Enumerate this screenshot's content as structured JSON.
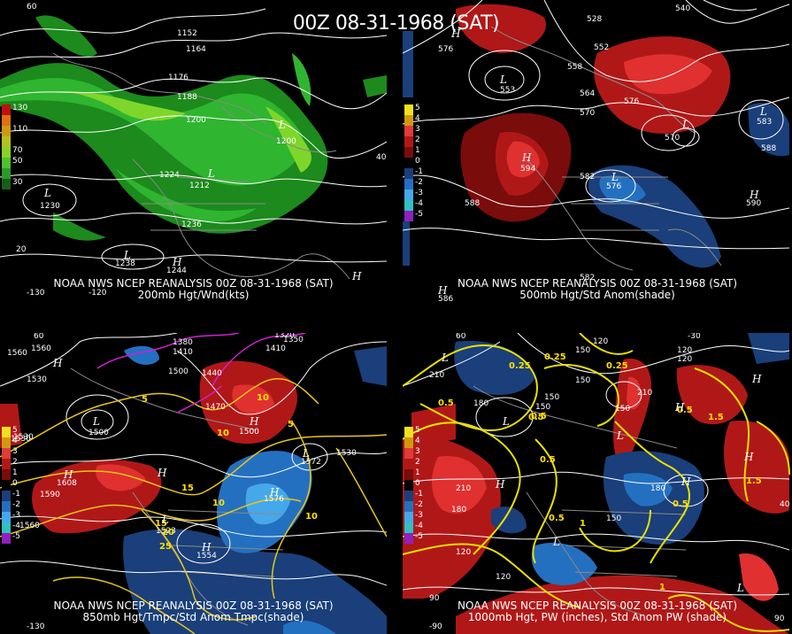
{
  "title": "00Z 08-31-1968 (SAT)",
  "colors": {
    "background": "#000000",
    "contour": "#ffffff",
    "wind_green": [
      "#1c8a1c",
      "#2fb52f",
      "#7fd62b",
      "#d2e63a"
    ],
    "anom_pos": [
      "#7a0c0c",
      "#b01818",
      "#e03030"
    ],
    "anom_neg": [
      "#1a3f7a",
      "#2470c0",
      "#45a8ea"
    ],
    "temp_contour": "#e8c619",
    "freezing_line": "#d020d0"
  },
  "panels": [
    {
      "id": "p200",
      "caption_line1": "NOAA NWS NCEP REANALYSIS 00Z 08-31-1968 (SAT)",
      "caption_line2": "200mb Hgt/Wnd(kts)",
      "colorbar": [
        {
          "color": "#c01010",
          "label": "130"
        },
        {
          "color": "#e07010",
          "label": ""
        },
        {
          "color": "#d09a10",
          "label": "110"
        },
        {
          "color": "#b5c020",
          "label": ""
        },
        {
          "color": "#8ad02a",
          "label": "70"
        },
        {
          "color": "#50c030",
          "label": "50"
        },
        {
          "color": "#2a9a2a",
          "label": ""
        },
        {
          "color": "#156015",
          "label": "30"
        }
      ],
      "labels": [
        "1152",
        "1164",
        "1176",
        "1188",
        "1200",
        "1200",
        "1212",
        "1224",
        "1236",
        "1230",
        "1238",
        "1244",
        "20",
        "-130",
        "-120"
      ],
      "hl_labels": [
        "L",
        "L",
        "L",
        "L",
        "H",
        "H"
      ],
      "edge_labels": [
        "60",
        "40"
      ]
    },
    {
      "id": "p500",
      "caption_line1": "NOAA NWS NCEP REANALYSIS 00Z 08-31-1968 (SAT)",
      "caption_line2": "500mb Hgt/Std Anom(shade)",
      "colorbar": [
        {
          "color": "#f0e020",
          "label": "5"
        },
        {
          "color": "#d09a10",
          "label": "4"
        },
        {
          "color": "#e03a3a",
          "label": "3"
        },
        {
          "color": "#b01818",
          "label": "2"
        },
        {
          "color": "#7a0c0c",
          "label": "1"
        },
        {
          "color": "#000000",
          "label": "0"
        },
        {
          "color": "#1a3f7a",
          "label": "-1"
        },
        {
          "color": "#2470c0",
          "label": "-2"
        },
        {
          "color": "#45a8ea",
          "label": "-3"
        },
        {
          "color": "#30c0c0",
          "label": "-4"
        },
        {
          "color": "#9020c0",
          "label": "-5"
        }
      ],
      "labels": [
        "540",
        "528",
        "552",
        "558",
        "564",
        "570",
        "576",
        "582",
        "588",
        "588",
        "553",
        "594",
        "576",
        "570",
        "583",
        "590",
        "582",
        "586"
      ],
      "hl_labels": [
        "H",
        "L",
        "L",
        "L",
        "L",
        "H",
        "H",
        "H"
      ],
      "edge_labels": [
        "576"
      ]
    },
    {
      "id": "p850",
      "caption_line1": "NOAA NWS NCEP REANALYSIS 00Z 08-31-1968 (SAT)",
      "caption_line2": "850mb Hgt/Tmpc/Std Anom Tmpc(shade)",
      "colorbar": [
        {
          "color": "#f0e020",
          "label": "5"
        },
        {
          "color": "#d09a10",
          "label": "4"
        },
        {
          "color": "#e03a3a",
          "label": "3"
        },
        {
          "color": "#b01818",
          "label": "2"
        },
        {
          "color": "#7a0c0c",
          "label": "1"
        },
        {
          "color": "#000000",
          "label": "0"
        },
        {
          "color": "#1a3f7a",
          "label": "-1"
        },
        {
          "color": "#2470c0",
          "label": "-2"
        },
        {
          "color": "#45a8ea",
          "label": "-3"
        },
        {
          "color": "#30c0c0",
          "label": "-4"
        },
        {
          "color": "#9020c0",
          "label": "-5"
        }
      ],
      "labels": [
        "1560",
        "1530",
        "1500",
        "1530",
        "1380",
        "1410",
        "1440",
        "1470",
        "1500",
        "1320",
        "1350",
        "1410",
        "1560",
        "1590",
        "1608",
        "1530",
        "1560",
        "1554",
        "1523",
        "1576",
        "1572",
        "1530",
        "1500"
      ],
      "yellow_labels": [
        "5",
        "10",
        "10",
        "15",
        "10",
        "15",
        "20",
        "25",
        "5",
        "10"
      ],
      "hl_labels": [
        "H",
        "L",
        "H",
        "H",
        "H",
        "L",
        "H",
        "L",
        "H"
      ],
      "edge_labels": [
        "60",
        "-130"
      ]
    },
    {
      "id": "p1000",
      "caption_line1": "NOAA NWS NCEP REANALYSIS 00Z 08-31-1968 (SAT)",
      "caption_line2": "1000mb Hgt, PW (inches), Std Anom PW (shade)",
      "colorbar": [
        {
          "color": "#f0e020",
          "label": "5"
        },
        {
          "color": "#d09a10",
          "label": "4"
        },
        {
          "color": "#e03a3a",
          "label": "3"
        },
        {
          "color": "#b01818",
          "label": "2"
        },
        {
          "color": "#7a0c0c",
          "label": "1"
        },
        {
          "color": "#000000",
          "label": "0"
        },
        {
          "color": "#1a3f7a",
          "label": "-1"
        },
        {
          "color": "#2470c0",
          "label": "-2"
        },
        {
          "color": "#45a8ea",
          "label": "-3"
        },
        {
          "color": "#30c0c0",
          "label": "-4"
        },
        {
          "color": "#9020c0",
          "label": "-5"
        }
      ],
      "labels": [
        "120",
        "150",
        "210",
        "180",
        "150",
        "150",
        "210",
        "180",
        "210",
        "120",
        "180",
        "150",
        "120",
        "90",
        "90",
        "-30",
        "120",
        "150",
        "150",
        "120"
      ],
      "yellow_labels": [
        "0.25",
        "0.25",
        "0.5",
        "0.5",
        "0.5",
        "0.5",
        "1",
        "1.5",
        "1.5",
        "0.5",
        "0.5",
        "0.5",
        "1",
        "0.25"
      ],
      "hl_labels": [
        "L",
        "H",
        "L",
        "H",
        "L",
        "H",
        "H",
        "H",
        "L",
        "L"
      ],
      "edge_labels": [
        "60",
        "40",
        "-90"
      ]
    }
  ]
}
